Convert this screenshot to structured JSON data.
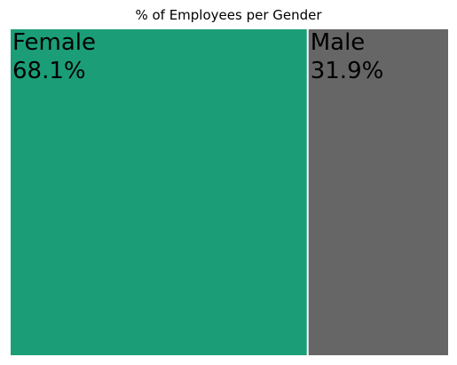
{
  "chart_data": {
    "type": "treemap",
    "title": "% of Employees per Gender",
    "categories": [
      "Female",
      "Male"
    ],
    "values": [
      68.1,
      31.9
    ],
    "value_labels": [
      "68.1%",
      "31.9%"
    ],
    "colors": [
      "#1b9e77",
      "#666666"
    ],
    "grid": false,
    "legend": "none"
  }
}
